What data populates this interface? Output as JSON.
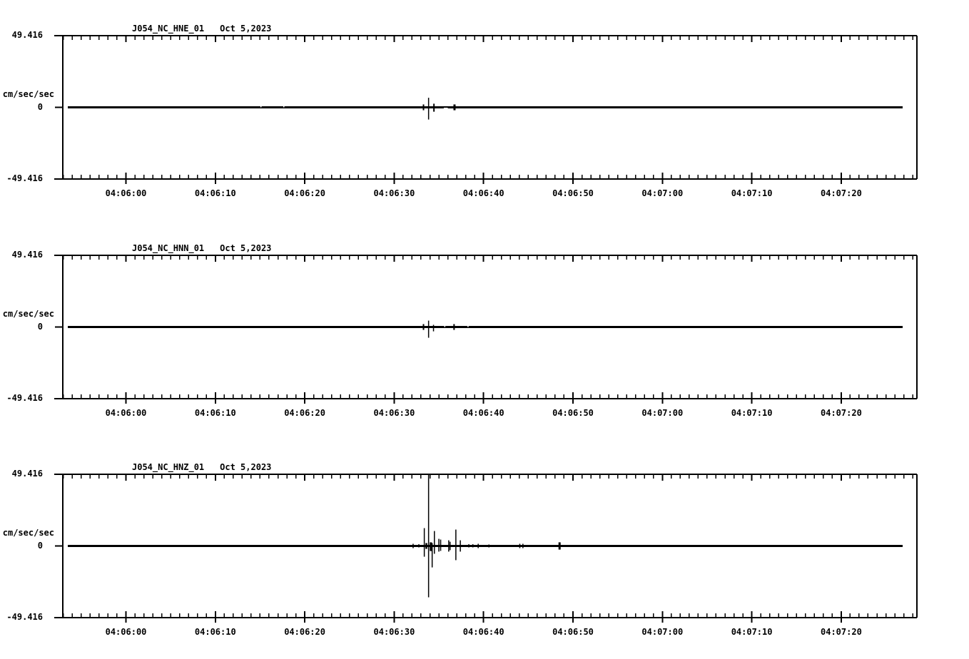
{
  "figure": {
    "background": "#ffffff",
    "ink": "#000000"
  },
  "chart_data": [
    {
      "type": "line",
      "id": "HNE",
      "title": "J054_NC_HNE_01",
      "date": "Oct 5,2023",
      "ylabel": "cm/sec/sec",
      "ylim": [
        -49.416,
        49.416
      ],
      "yticks": [
        {
          "value": 49.416,
          "label": "49.416"
        },
        {
          "value": 0,
          "label": "0"
        },
        {
          "value": -49.416,
          "label": "-49.416"
        }
      ],
      "x_axis": {
        "ref_time": "04:06:00",
        "start_offset_s": -7,
        "end_offset_s": 88,
        "minor_tick_s": 1,
        "major_tick_s": 10
      },
      "xticks": [
        {
          "s": 0,
          "label": "04:06:00"
        },
        {
          "s": 10,
          "label": "04:06:10"
        },
        {
          "s": 20,
          "label": "04:06:20"
        },
        {
          "s": 30,
          "label": "04:06:30"
        },
        {
          "s": 40,
          "label": "04:06:40"
        },
        {
          "s": 50,
          "label": "04:06:50"
        },
        {
          "s": 60,
          "label": "04:07:00"
        },
        {
          "s": 70,
          "label": "04:07:10"
        },
        {
          "s": 80,
          "label": "04:07:20"
        }
      ],
      "baseline": 0,
      "spikes": [
        {
          "s": 33.28,
          "up": 2.0,
          "down": 2.0,
          "w": 2
        },
        {
          "s": 33.85,
          "up": 6.6,
          "down": 8.4,
          "w": 1.5
        },
        {
          "s": 34.45,
          "up": 2.5,
          "down": 3.0,
          "w": 2
        },
        {
          "s": 36.75,
          "up": 2.0,
          "down": 2.0,
          "w": 3
        }
      ],
      "notches": [
        {
          "s": 15.04
        },
        {
          "s": 17.6
        },
        {
          "s": 35.55,
          "len_s": 0.45,
          "side": "bottom"
        }
      ]
    },
    {
      "type": "line",
      "id": "HNN",
      "title": "J054_NC_HNN_01",
      "date": "Oct 5,2023",
      "ylabel": "cm/sec/sec",
      "ylim": [
        -49.416,
        49.416
      ],
      "yticks": [
        {
          "value": 49.416,
          "label": "49.416"
        },
        {
          "value": 0,
          "label": "0"
        },
        {
          "value": -49.416,
          "label": "-49.416"
        }
      ],
      "x_axis": {
        "ref_time": "04:06:00",
        "start_offset_s": -7,
        "end_offset_s": 88,
        "minor_tick_s": 1,
        "major_tick_s": 10
      },
      "xticks": [
        {
          "s": 0,
          "label": "04:06:00"
        },
        {
          "s": 10,
          "label": "04:06:10"
        },
        {
          "s": 20,
          "label": "04:06:20"
        },
        {
          "s": 30,
          "label": "04:06:30"
        },
        {
          "s": 40,
          "label": "04:06:40"
        },
        {
          "s": 50,
          "label": "04:06:50"
        },
        {
          "s": 60,
          "label": "04:07:00"
        },
        {
          "s": 70,
          "label": "04:07:10"
        },
        {
          "s": 80,
          "label": "04:07:20"
        }
      ],
      "baseline": 0,
      "spikes": [
        {
          "s": 33.28,
          "up": 2.0,
          "down": 2.0,
          "w": 2
        },
        {
          "s": 33.85,
          "up": 4.4,
          "down": 7.4,
          "w": 1.5
        },
        {
          "s": 34.4,
          "up": 1.5,
          "down": 3.0,
          "w": 1.5
        },
        {
          "s": 36.7,
          "up": 2.0,
          "down": 2.0,
          "w": 2
        }
      ],
      "notches": [
        {
          "s": 35.6
        },
        {
          "s": 38.2
        }
      ]
    },
    {
      "type": "line",
      "id": "HNZ",
      "title": "J054_NC_HNZ_01",
      "date": "Oct 5,2023",
      "ylabel": "cm/sec/sec",
      "ylim": [
        -49.416,
        49.416
      ],
      "yticks": [
        {
          "value": 49.416,
          "label": "49.416"
        },
        {
          "value": 0,
          "label": "0"
        },
        {
          "value": -49.416,
          "label": "-49.416"
        }
      ],
      "x_axis": {
        "ref_time": "04:06:00",
        "start_offset_s": -7,
        "end_offset_s": 88,
        "minor_tick_s": 1,
        "major_tick_s": 10
      },
      "xticks": [
        {
          "s": 0,
          "label": "04:06:00"
        },
        {
          "s": 10,
          "label": "04:06:10"
        },
        {
          "s": 20,
          "label": "04:06:20"
        },
        {
          "s": 30,
          "label": "04:06:30"
        },
        {
          "s": 40,
          "label": "04:06:40"
        },
        {
          "s": 50,
          "label": "04:06:50"
        },
        {
          "s": 60,
          "label": "04:07:00"
        },
        {
          "s": 70,
          "label": "04:07:10"
        },
        {
          "s": 80,
          "label": "04:07:20"
        }
      ],
      "baseline": 0,
      "spikes": [
        {
          "s": 32.12,
          "up": 1.5,
          "down": 1.5,
          "w": 1.5
        },
        {
          "s": 32.76,
          "up": 1.2,
          "down": 1.0,
          "w": 1.5
        },
        {
          "s": 33.37,
          "up": 12.3,
          "down": 7.4,
          "w": 1.5
        },
        {
          "s": 33.6,
          "up": 2.0,
          "down": 2.0,
          "w": 2.5
        },
        {
          "s": 33.85,
          "up": 49.4,
          "down": 35.4,
          "w": 1.5
        },
        {
          "s": 34.1,
          "up": 2.5,
          "down": 3.5,
          "w": 3
        },
        {
          "s": 34.25,
          "up": 2.0,
          "down": 14.8,
          "w": 1.5
        },
        {
          "s": 34.5,
          "up": 10.3,
          "down": 5.4,
          "w": 1.5
        },
        {
          "s": 35.0,
          "up": 4.9,
          "down": 3.9,
          "w": 1.5
        },
        {
          "s": 35.2,
          "up": 4.4,
          "down": 3.4,
          "w": 1.5
        },
        {
          "s": 36.1,
          "up": 3.9,
          "down": 3.9,
          "w": 1.5
        },
        {
          "s": 36.25,
          "up": 2.9,
          "down": 2.9,
          "w": 1.5
        },
        {
          "s": 36.9,
          "up": 11.3,
          "down": 9.8,
          "w": 1.5
        },
        {
          "s": 37.4,
          "up": 3.9,
          "down": 3.9,
          "w": 1.5
        },
        {
          "s": 38.35,
          "up": 1.2,
          "down": 1.0,
          "w": 1.5
        },
        {
          "s": 38.8,
          "up": 1.2,
          "down": 1.0,
          "w": 1.5
        },
        {
          "s": 39.4,
          "up": 1.5,
          "down": 1.5,
          "w": 1.5
        },
        {
          "s": 40.6,
          "up": 1.0,
          "down": 1.0,
          "w": 1.5
        },
        {
          "s": 44.05,
          "up": 1.5,
          "down": 1.5,
          "w": 1.5
        },
        {
          "s": 44.4,
          "up": 1.5,
          "down": 1.5,
          "w": 1.5
        },
        {
          "s": 48.5,
          "up": 2.5,
          "down": 2.5,
          "w": 3
        }
      ],
      "notches": []
    }
  ]
}
